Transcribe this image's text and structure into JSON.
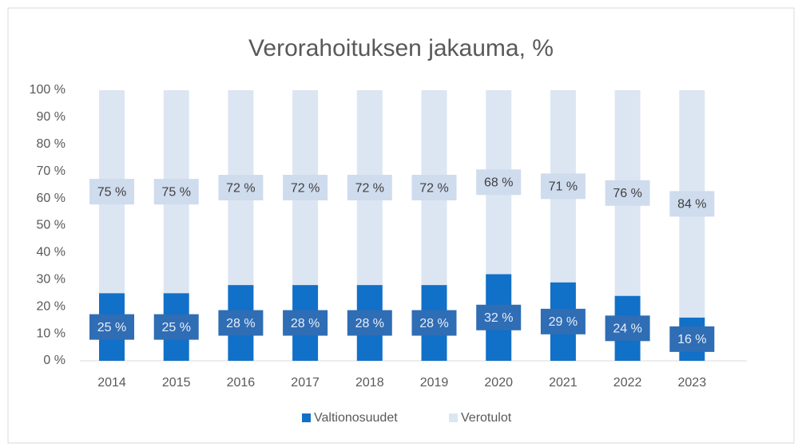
{
  "chart_data": {
    "type": "bar",
    "stacked": true,
    "title": "Verorahoituksen jakauma, %",
    "categories": [
      "2014",
      "2015",
      "2016",
      "2017",
      "2018",
      "2019",
      "2020",
      "2021",
      "2022",
      "2023"
    ],
    "series": [
      {
        "name": "Valtionosuudet",
        "color": "#1170c8",
        "values": [
          25,
          25,
          28,
          28,
          28,
          28,
          32,
          29,
          24,
          16
        ],
        "value_labels": [
          "25 %",
          "25 %",
          "28 %",
          "28 %",
          "28 %",
          "28 %",
          "32 %",
          "29 %",
          "24 %",
          "16 %"
        ]
      },
      {
        "name": "Verotulot",
        "color": "#dce6f2",
        "values": [
          75,
          75,
          72,
          72,
          72,
          72,
          68,
          71,
          76,
          84
        ],
        "value_labels": [
          "75 %",
          "75 %",
          "72 %",
          "72 %",
          "72 %",
          "72 %",
          "68 %",
          "71 %",
          "76 %",
          "84 %"
        ]
      }
    ],
    "ylim": [
      0,
      100
    ],
    "yticks": [
      {
        "value": 0,
        "label": "0 %"
      },
      {
        "value": 10,
        "label": "10 %"
      },
      {
        "value": 20,
        "label": "20 %"
      },
      {
        "value": 30,
        "label": "30 %"
      },
      {
        "value": 40,
        "label": "40 %"
      },
      {
        "value": 50,
        "label": "50 %"
      },
      {
        "value": 60,
        "label": "60 %"
      },
      {
        "value": 70,
        "label": "70 %"
      },
      {
        "value": 80,
        "label": "80 %"
      },
      {
        "value": 90,
        "label": "90 %"
      },
      {
        "value": 100,
        "label": "100 %"
      }
    ],
    "grid": false,
    "legend": "bottom"
  }
}
